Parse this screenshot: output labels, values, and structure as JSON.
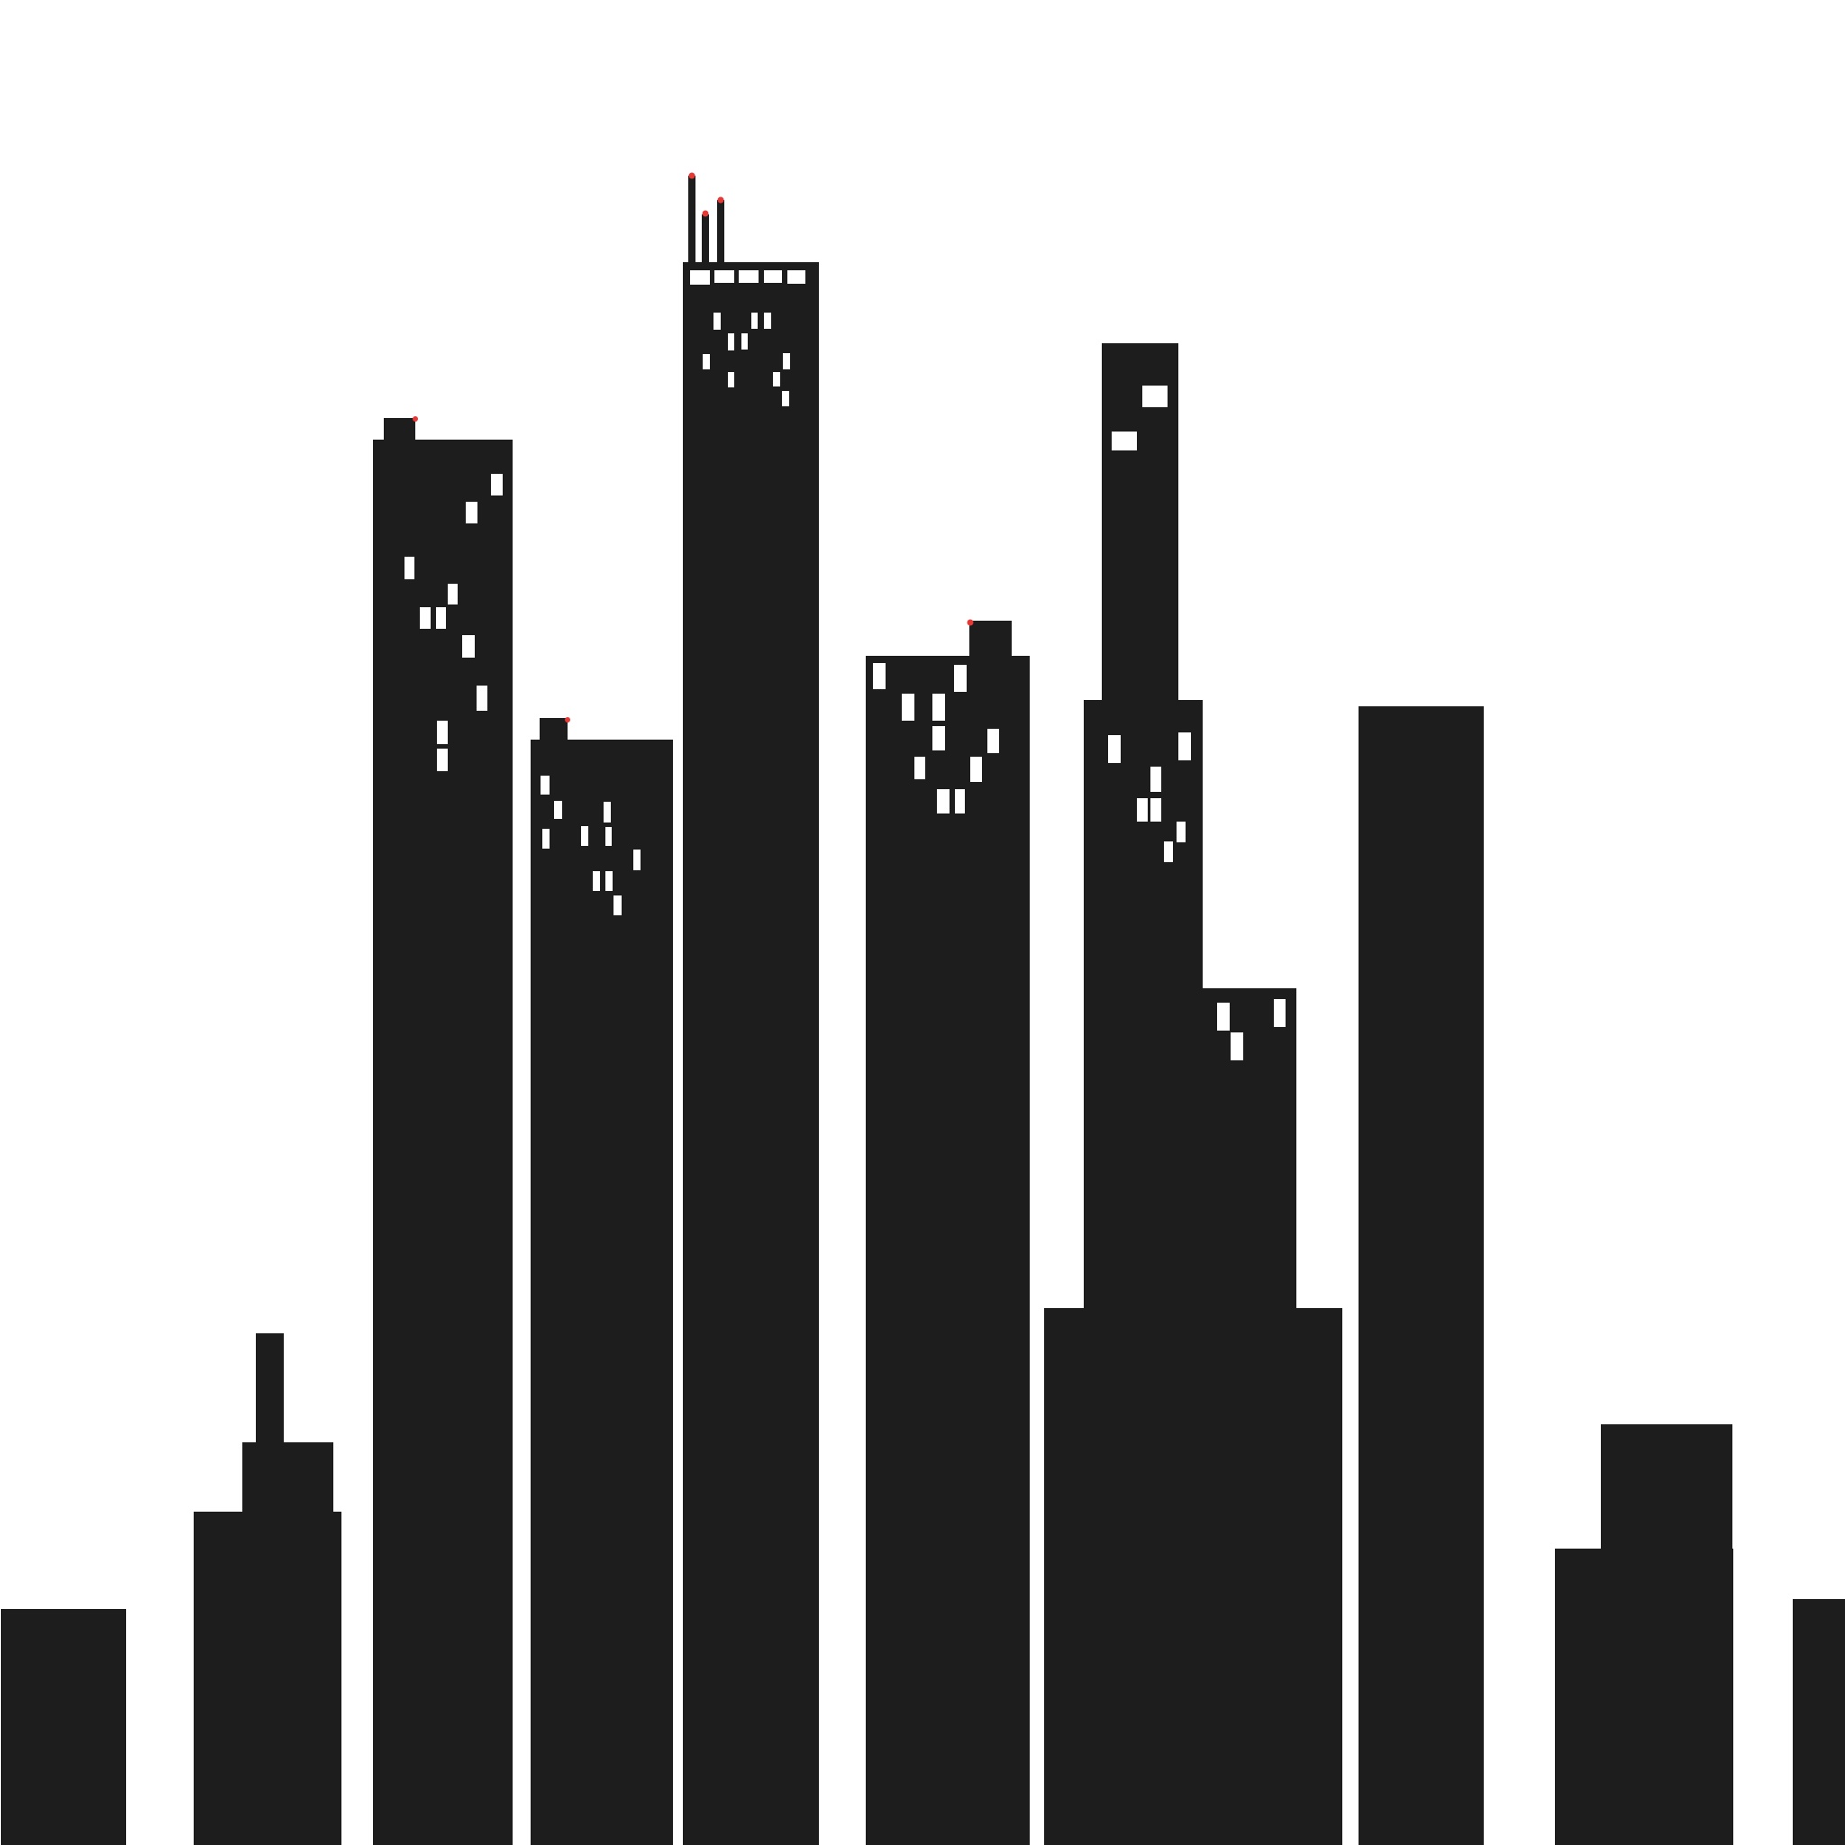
{
  "scene": {
    "subject": "city-skyline-silhouette",
    "colors": {
      "background": "#ffffff",
      "building": "#1d1d1d",
      "window": "#ffffff",
      "beacon": "#e53935"
    },
    "building_count": 12,
    "beacon_count": 6
  }
}
